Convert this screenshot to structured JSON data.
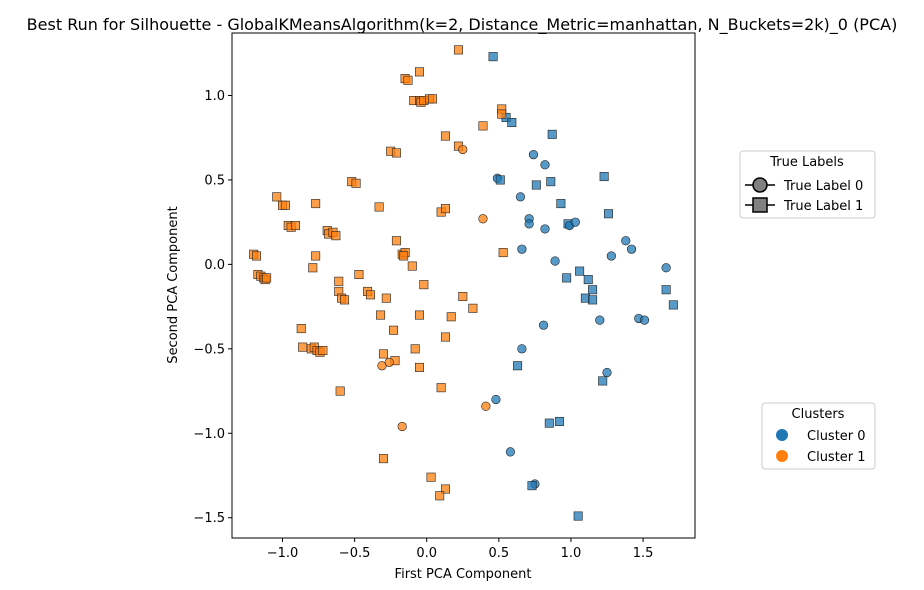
{
  "chart_data": {
    "type": "scatter",
    "title": "Best Run for Silhouette - GlobalKMeansAlgorithm(k=2, Distance_Metric=manhattan, N_Buckets=2k)_0 (PCA)",
    "xlabel": "First PCA Component",
    "ylabel": "Second PCA Component",
    "xlim": [
      -1.35,
      1.86
    ],
    "ylim": [
      -1.62,
      1.37
    ],
    "xticks": [
      -1.0,
      -0.5,
      0.0,
      0.5,
      1.0,
      1.5
    ],
    "xtick_labels": [
      "−1.0",
      "−0.5",
      "0.0",
      "0.5",
      "1.0",
      "1.5"
    ],
    "yticks": [
      -1.5,
      -1.0,
      -0.5,
      0.0,
      0.5,
      1.0
    ],
    "ytick_labels": [
      "−1.5",
      "−1.0",
      "−0.5",
      "0.0",
      "0.5",
      "1.0"
    ],
    "grid": false,
    "colors": {
      "cluster_0": "#1f77b4",
      "cluster_1": "#ff7f0e",
      "legend_marker": "#808080"
    },
    "legend_true_labels": {
      "title": "True Labels",
      "placement": "right-upper",
      "entries": [
        {
          "label": "True Label 0",
          "marker": "circle"
        },
        {
          "label": "True Label 1",
          "marker": "square"
        }
      ]
    },
    "legend_clusters": {
      "title": "Clusters",
      "placement": "right-lower",
      "entries": [
        {
          "label": "Cluster 0",
          "color": "#1f77b4"
        },
        {
          "label": "Cluster 1",
          "color": "#ff7f0e"
        }
      ]
    },
    "points": [
      [
        0.46,
        1.23,
        0,
        1
      ],
      [
        0.55,
        0.87,
        0,
        1
      ],
      [
        0.59,
        0.84,
        0,
        1
      ],
      [
        0.87,
        0.77,
        0,
        1
      ],
      [
        0.74,
        0.65,
        0,
        0
      ],
      [
        0.82,
        0.59,
        0,
        0
      ],
      [
        0.49,
        0.51,
        0,
        0
      ],
      [
        0.51,
        0.5,
        0,
        1
      ],
      [
        0.76,
        0.47,
        0,
        1
      ],
      [
        0.86,
        0.49,
        0,
        1
      ],
      [
        1.23,
        0.52,
        0,
        1
      ],
      [
        0.65,
        0.4,
        0,
        0
      ],
      [
        0.93,
        0.36,
        0,
        1
      ],
      [
        1.26,
        0.3,
        0,
        1
      ],
      [
        0.71,
        0.27,
        0,
        0
      ],
      [
        0.71,
        0.24,
        0,
        0
      ],
      [
        0.82,
        0.21,
        0,
        0
      ],
      [
        0.98,
        0.24,
        0,
        1
      ],
      [
        0.99,
        0.23,
        0,
        0
      ],
      [
        1.03,
        0.25,
        0,
        0
      ],
      [
        1.38,
        0.14,
        0,
        0
      ],
      [
        1.42,
        0.09,
        0,
        0
      ],
      [
        0.66,
        0.09,
        0,
        0
      ],
      [
        0.89,
        0.02,
        0,
        0
      ],
      [
        1.28,
        0.05,
        0,
        0
      ],
      [
        1.66,
        -0.02,
        0,
        0
      ],
      [
        1.06,
        -0.04,
        0,
        1
      ],
      [
        0.97,
        -0.08,
        0,
        1
      ],
      [
        1.12,
        -0.09,
        0,
        1
      ],
      [
        1.15,
        -0.15,
        0,
        1
      ],
      [
        1.66,
        -0.15,
        0,
        1
      ],
      [
        1.1,
        -0.2,
        0,
        1
      ],
      [
        1.15,
        -0.21,
        0,
        1
      ],
      [
        1.71,
        -0.24,
        0,
        1
      ],
      [
        1.2,
        -0.33,
        0,
        0
      ],
      [
        1.47,
        -0.32,
        0,
        0
      ],
      [
        1.51,
        -0.33,
        0,
        0
      ],
      [
        0.81,
        -0.36,
        0,
        0
      ],
      [
        0.66,
        -0.5,
        0,
        0
      ],
      [
        0.63,
        -0.6,
        0,
        1
      ],
      [
        1.25,
        -0.64,
        0,
        0
      ],
      [
        1.22,
        -0.69,
        0,
        1
      ],
      [
        0.48,
        -0.8,
        0,
        0
      ],
      [
        0.85,
        -0.94,
        0,
        1
      ],
      [
        0.92,
        -0.93,
        0,
        1
      ],
      [
        0.58,
        -1.11,
        0,
        0
      ],
      [
        0.75,
        -1.3,
        0,
        0
      ],
      [
        0.73,
        -1.31,
        0,
        1
      ],
      [
        1.05,
        -1.49,
        0,
        1
      ],
      [
        0.22,
        1.27,
        1,
        1
      ],
      [
        -0.05,
        1.14,
        1,
        1
      ],
      [
        -0.15,
        1.1,
        1,
        1
      ],
      [
        -0.13,
        1.09,
        1,
        1
      ],
      [
        -0.09,
        0.97,
        1,
        1
      ],
      [
        -0.05,
        0.97,
        1,
        1
      ],
      [
        -0.04,
        0.96,
        1,
        1
      ],
      [
        -0.02,
        0.97,
        1,
        1
      ],
      [
        0.02,
        0.98,
        1,
        1
      ],
      [
        0.04,
        0.98,
        1,
        1
      ],
      [
        0.52,
        0.92,
        1,
        1
      ],
      [
        0.52,
        0.89,
        1,
        1
      ],
      [
        0.39,
        0.82,
        1,
        1
      ],
      [
        0.13,
        0.76,
        1,
        1
      ],
      [
        0.22,
        0.7,
        1,
        1
      ],
      [
        0.25,
        0.68,
        1,
        0
      ],
      [
        -0.25,
        0.67,
        1,
        1
      ],
      [
        -0.21,
        0.66,
        1,
        1
      ],
      [
        -0.52,
        0.49,
        1,
        1
      ],
      [
        -0.49,
        0.48,
        1,
        1
      ],
      [
        -1.04,
        0.4,
        1,
        1
      ],
      [
        -1.0,
        0.35,
        1,
        1
      ],
      [
        -0.98,
        0.35,
        1,
        1
      ],
      [
        -0.77,
        0.36,
        1,
        1
      ],
      [
        -0.33,
        0.34,
        1,
        1
      ],
      [
        0.1,
        0.31,
        1,
        1
      ],
      [
        0.13,
        0.33,
        1,
        1
      ],
      [
        0.39,
        0.27,
        1,
        0
      ],
      [
        -0.96,
        0.23,
        1,
        1
      ],
      [
        -0.94,
        0.22,
        1,
        1
      ],
      [
        -0.91,
        0.23,
        1,
        1
      ],
      [
        -0.69,
        0.2,
        1,
        1
      ],
      [
        -0.68,
        0.18,
        1,
        1
      ],
      [
        -0.65,
        0.19,
        1,
        1
      ],
      [
        -0.63,
        0.17,
        1,
        1
      ],
      [
        -0.21,
        0.14,
        1,
        1
      ],
      [
        -0.17,
        0.06,
        1,
        1
      ],
      [
        -0.15,
        0.07,
        1,
        1
      ],
      [
        -0.16,
        0.05,
        1,
        1
      ],
      [
        -1.2,
        0.06,
        1,
        1
      ],
      [
        -1.18,
        0.05,
        1,
        1
      ],
      [
        -0.77,
        0.05,
        1,
        1
      ],
      [
        0.53,
        0.07,
        1,
        1
      ],
      [
        -0.79,
        -0.02,
        1,
        1
      ],
      [
        -0.1,
        -0.01,
        1,
        1
      ],
      [
        -1.17,
        -0.06,
        1,
        1
      ],
      [
        -1.15,
        -0.07,
        1,
        1
      ],
      [
        -1.13,
        -0.08,
        1,
        1
      ],
      [
        -1.12,
        -0.09,
        1,
        1
      ],
      [
        -1.11,
        -0.08,
        1,
        1
      ],
      [
        -0.47,
        -0.06,
        1,
        1
      ],
      [
        -0.61,
        -0.1,
        1,
        1
      ],
      [
        -0.41,
        -0.16,
        1,
        1
      ],
      [
        -0.39,
        -0.18,
        1,
        1
      ],
      [
        -0.61,
        -0.16,
        1,
        1
      ],
      [
        -0.59,
        -0.2,
        1,
        1
      ],
      [
        -0.57,
        -0.21,
        1,
        1
      ],
      [
        -0.02,
        -0.12,
        1,
        1
      ],
      [
        -0.28,
        -0.2,
        1,
        1
      ],
      [
        0.25,
        -0.19,
        1,
        1
      ],
      [
        0.32,
        -0.26,
        1,
        1
      ],
      [
        0.17,
        -0.31,
        1,
        1
      ],
      [
        -0.05,
        -0.3,
        1,
        1
      ],
      [
        -0.32,
        -0.3,
        1,
        1
      ],
      [
        -0.23,
        -0.39,
        1,
        1
      ],
      [
        0.13,
        -0.43,
        1,
        1
      ],
      [
        -0.87,
        -0.38,
        1,
        1
      ],
      [
        -0.86,
        -0.49,
        1,
        1
      ],
      [
        -0.8,
        -0.5,
        1,
        1
      ],
      [
        -0.78,
        -0.49,
        1,
        1
      ],
      [
        -0.76,
        -0.51,
        1,
        1
      ],
      [
        -0.74,
        -0.52,
        1,
        1
      ],
      [
        -0.72,
        -0.51,
        1,
        1
      ],
      [
        -0.3,
        -0.53,
        1,
        1
      ],
      [
        -0.08,
        -0.5,
        1,
        1
      ],
      [
        -0.22,
        -0.57,
        1,
        1
      ],
      [
        -0.31,
        -0.6,
        1,
        0
      ],
      [
        -0.26,
        -0.58,
        1,
        0
      ],
      [
        -0.05,
        -0.61,
        1,
        1
      ],
      [
        0.1,
        -0.73,
        1,
        1
      ],
      [
        -0.6,
        -0.75,
        1,
        1
      ],
      [
        0.41,
        -0.84,
        1,
        0
      ],
      [
        -0.17,
        -0.96,
        1,
        0
      ],
      [
        -0.3,
        -1.15,
        1,
        1
      ],
      [
        0.03,
        -1.26,
        1,
        1
      ],
      [
        0.13,
        -1.33,
        1,
        1
      ],
      [
        0.09,
        -1.37,
        1,
        1
      ]
    ]
  }
}
